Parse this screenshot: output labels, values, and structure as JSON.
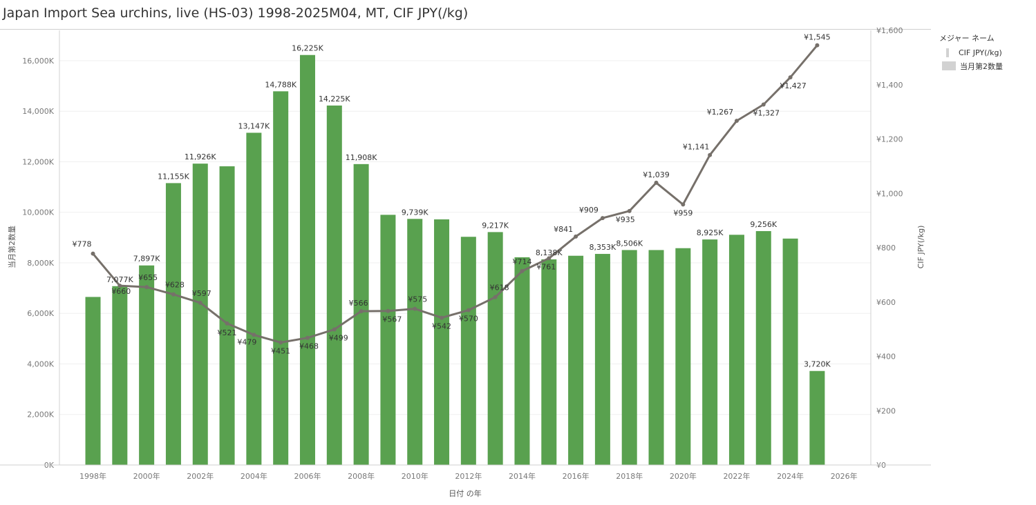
{
  "title": "Japan Import Sea urchins, live (HS-03) 1998-2025M04, MT, CIF JPY(/kg)",
  "legend": {
    "title": "メジャー ネーム",
    "items": [
      {
        "label": "CIF JPY(/kg)",
        "kind": "line"
      },
      {
        "label": "当月第2数量",
        "kind": "bar"
      }
    ]
  },
  "colors": {
    "bar": "#59a14f",
    "line": "#76706a",
    "axis_text": "#777777",
    "label_text": "#333333",
    "grid": "#efefef"
  },
  "chart_data": {
    "type": "bar+line",
    "title": "Japan Import Sea urchins, live (HS-03) 1998-2025M04, MT, CIF JPY(/kg)",
    "xlabel": "日付 の年",
    "ylabel_left": "当月第2数量",
    "ylabel_right": "CIF JPY(/kg)",
    "x_range": [
      1996.75,
      2027.0
    ],
    "ylim_left": [
      0,
      17200
    ],
    "ylim_right": [
      0,
      1600
    ],
    "x_ticks": [
      1998,
      2000,
      2002,
      2004,
      2006,
      2008,
      2010,
      2012,
      2014,
      2016,
      2018,
      2020,
      2022,
      2024,
      2026
    ],
    "x_tick_labels": [
      "1998年",
      "2000年",
      "2002年",
      "2004年",
      "2006年",
      "2008年",
      "2010年",
      "2012年",
      "2014年",
      "2016年",
      "2018年",
      "2020年",
      "2022年",
      "2024年",
      "2026年"
    ],
    "y_left_ticks": [
      0,
      2000,
      4000,
      6000,
      8000,
      10000,
      12000,
      14000,
      16000
    ],
    "y_left_tick_labels": [
      "0K",
      "2,000K",
      "4,000K",
      "6,000K",
      "8,000K",
      "10,000K",
      "12,000K",
      "14,000K",
      "16,000K"
    ],
    "y_right_ticks": [
      0,
      200,
      400,
      600,
      800,
      1000,
      1200,
      1400,
      1600
    ],
    "y_right_tick_labels": [
      "¥0",
      "¥200",
      "¥400",
      "¥600",
      "¥800",
      "¥1,000",
      "¥1,200",
      "¥1,400",
      "¥1,600"
    ],
    "years": [
      1998,
      1999,
      2000,
      2001,
      2002,
      2003,
      2004,
      2005,
      2006,
      2007,
      2008,
      2009,
      2010,
      2011,
      2012,
      2013,
      2014,
      2015,
      2016,
      2017,
      2018,
      2019,
      2020,
      2021,
      2022,
      2023,
      2024,
      2025
    ],
    "series": [
      {
        "name": "当月第2数量",
        "kind": "bar",
        "axis": "left",
        "values": [
          6650,
          7077,
          7897,
          11155,
          11926,
          11820,
          13147,
          14788,
          16225,
          14225,
          11908,
          9900,
          9739,
          9720,
          9030,
          9217,
          8220,
          8138,
          8280,
          8353,
          8506,
          8506,
          8580,
          8925,
          9110,
          9256,
          8960,
          3720
        ],
        "labels": [
          "",
          "7,077K",
          "7,897K",
          "11,155K",
          "11,926K",
          "",
          "13,147K",
          "14,788K",
          "16,225K",
          "14,225K",
          "11,908K",
          "",
          "9,739K",
          "",
          "",
          "9,217K",
          "",
          "8,138K",
          "",
          "8,353K",
          "8,506K",
          "",
          "",
          "8,925K",
          "",
          "9,256K",
          "",
          "3,720K"
        ]
      },
      {
        "name": "CIF JPY(/kg)",
        "kind": "line",
        "axis": "right",
        "values": [
          778,
          660,
          655,
          628,
          597,
          521,
          479,
          451,
          468,
          499,
          566,
          567,
          575,
          542,
          570,
          618,
          714,
          761,
          841,
          909,
          935,
          1039,
          959,
          1141,
          1267,
          1327,
          1427,
          1545
        ],
        "labels": [
          "¥778",
          "¥660",
          "¥655",
          "¥628",
          "¥597",
          "¥521",
          "¥479",
          "¥451",
          "¥468",
          "¥499",
          "¥566",
          "¥567",
          "¥575",
          "¥542",
          "¥570",
          "¥618",
          "¥714",
          "¥761",
          "¥841",
          "¥909",
          "¥935",
          "¥1,039",
          "¥959",
          "¥1,141",
          "¥1,267",
          "¥1,327",
          "¥1,427",
          "¥1,545"
        ]
      }
    ]
  }
}
